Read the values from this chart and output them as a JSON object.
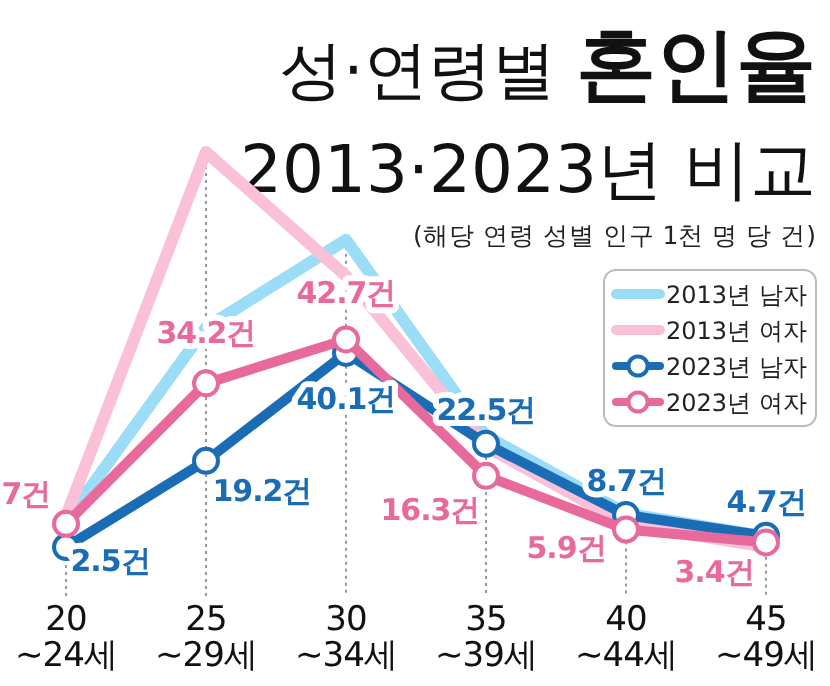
{
  "chart_data": {
    "type": "line",
    "title": "성·연령별 혼인율",
    "subtitle": "2013·2023년 비교",
    "annotations": [
      "(해당 연령 성별 인구 1천 명 당 건)"
    ],
    "categories": [
      "20\n~24세",
      "25\n~29세",
      "30\n~34세",
      "35\n~39세",
      "40\n~44세",
      "45\n~49세"
    ],
    "grid": "x",
    "legend": "right",
    "marker": "circle",
    "series": [
      {
        "name": "2013년 남자",
        "color": "#9bdcf7",
        "values": [
          7.5,
          45,
          62,
          24,
          9,
          4.5
        ]
      },
      {
        "name": "2013년 여자",
        "color": "#f9c0d8",
        "values": [
          8.5,
          79,
          55,
          22,
          7,
          2.5
        ]
      },
      {
        "name": "2023년 남자",
        "color": "#1a6db5",
        "values": [
          2.5,
          19.2,
          40.1,
          22.5,
          8.7,
          4.7
        ],
        "value_labels": [
          "2.5건",
          "19.2건",
          "40.1건",
          "22.5건",
          "8.7건",
          "4.7건"
        ]
      },
      {
        "name": "2023년 여자",
        "color": "#e8699b",
        "values": [
          7,
          34.2,
          42.7,
          16.3,
          5.9,
          3.4
        ],
        "value_labels": [
          "7건",
          "34.2건",
          "42.7건",
          "16.3건",
          "5.9건",
          "3.4건"
        ]
      }
    ]
  }
}
